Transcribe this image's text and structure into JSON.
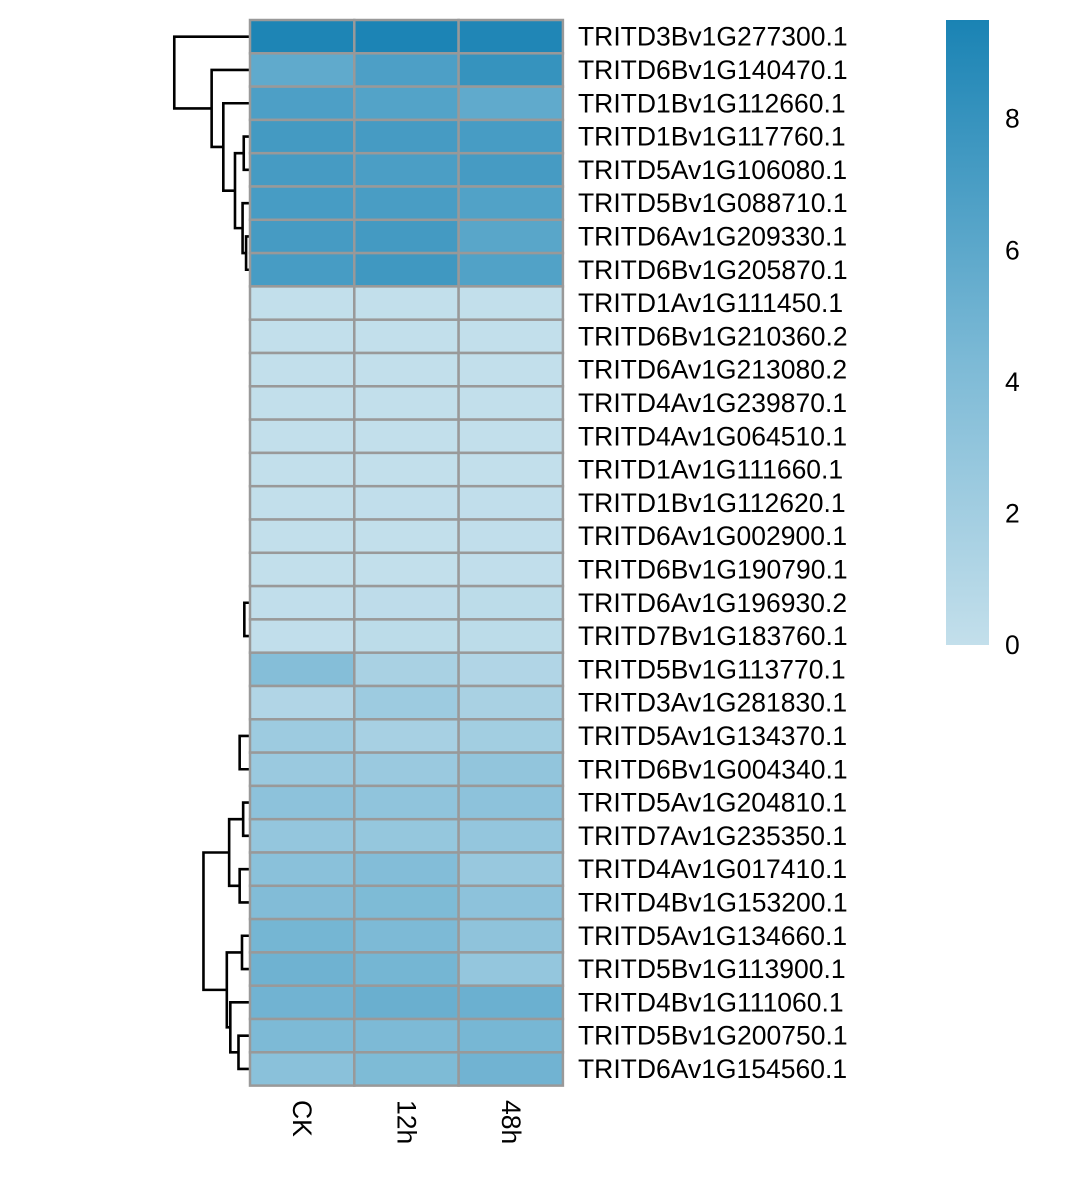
{
  "chart_data": {
    "type": "heatmap",
    "title": "",
    "xlabel": "",
    "ylabel": "",
    "columns": [
      "CK",
      "12h",
      "48h"
    ],
    "rows": [
      "TRITD3Bv1G277300.1",
      "TRITD6Bv1G140470.1",
      "TRITD1Bv1G112660.1",
      "TRITD1Bv1G117760.1",
      "TRITD5Av1G106080.1",
      "TRITD5Bv1G088710.1",
      "TRITD6Av1G209330.1",
      "TRITD6Bv1G205870.1",
      "TRITD1Av1G111450.1",
      "TRITD6Bv1G210360.2",
      "TRITD6Av1G213080.2",
      "TRITD4Av1G239870.1",
      "TRITD4Av1G064510.1",
      "TRITD1Av1G111660.1",
      "TRITD1Bv1G112620.1",
      "TRITD6Av1G002900.1",
      "TRITD6Bv1G190790.1",
      "TRITD6Av1G196930.2",
      "TRITD7Bv1G183760.1",
      "TRITD5Bv1G113770.1",
      "TRITD3Av1G281830.1",
      "TRITD5Av1G134370.1",
      "TRITD6Bv1G004340.1",
      "TRITD5Av1G204810.1",
      "TRITD7Av1G235350.1",
      "TRITD4Av1G017410.1",
      "TRITD4Bv1G153200.1",
      "TRITD5Av1G134660.1",
      "TRITD5Bv1G113900.1",
      "TRITD4Bv1G111060.1",
      "TRITD5Bv1G200750.1",
      "TRITD6Av1G154560.1"
    ],
    "values": [
      [
        9.3,
        9.4,
        9.2
      ],
      [
        5.8,
        6.8,
        8.0
      ],
      [
        6.8,
        6.5,
        5.8
      ],
      [
        7.3,
        7.2,
        7.1
      ],
      [
        7.2,
        6.9,
        7.2
      ],
      [
        7.1,
        7.0,
        6.6
      ],
      [
        7.2,
        7.3,
        6.2
      ],
      [
        7.1,
        7.5,
        6.6
      ],
      [
        0.05,
        0.05,
        0.05
      ],
      [
        0.05,
        0.05,
        0.05
      ],
      [
        0.05,
        0.05,
        0.05
      ],
      [
        0.05,
        0.05,
        0.05
      ],
      [
        0.05,
        0.05,
        0.05
      ],
      [
        0.05,
        0.05,
        0.05
      ],
      [
        0.05,
        0.1,
        0.1
      ],
      [
        0.05,
        0.05,
        0.1
      ],
      [
        0.05,
        0.05,
        0.1
      ],
      [
        0.1,
        0.3,
        0.4
      ],
      [
        0.1,
        0.4,
        0.4
      ],
      [
        3.8,
        1.6,
        1.1
      ],
      [
        1.1,
        2.3,
        1.6
      ],
      [
        2.3,
        1.7,
        2.0
      ],
      [
        2.5,
        2.5,
        3.0
      ],
      [
        3.3,
        3.1,
        3.3
      ],
      [
        2.9,
        2.8,
        2.9
      ],
      [
        3.5,
        3.9,
        2.6
      ],
      [
        4.0,
        4.2,
        3.3
      ],
      [
        4.7,
        4.3,
        3.2
      ],
      [
        5.0,
        4.7,
        2.9
      ],
      [
        4.9,
        5.3,
        5.2
      ],
      [
        4.3,
        4.3,
        4.6
      ],
      [
        3.5,
        4.2,
        4.9
      ]
    ],
    "color_scale": {
      "min": 0,
      "max": 9.5,
      "low_color": "#C3DFEB",
      "mid_color": "#7DBAD6",
      "high_color": "#1A83B4",
      "cell_border_color": "#999999"
    },
    "legend": {
      "position": "right",
      "ticks": [
        0,
        2,
        4,
        6,
        8
      ],
      "tick_labels": [
        "0",
        "2",
        "4",
        "6",
        "8"
      ]
    },
    "row_dendrogram": {
      "side": "left",
      "merges": [
        {
          "a": 6,
          "b": 7,
          "height": 0.25
        },
        {
          "a": 5,
          "b": [
            6,
            7
          ],
          "height": 0.55
        },
        {
          "a": 3,
          "b": 4,
          "height": 0.45
        },
        {
          "a": [
            3,
            4
          ],
          "b": [
            5,
            6,
            7
          ],
          "height": 1.2
        },
        {
          "a": 2,
          "b": [
            3,
            4,
            5,
            6,
            7
          ],
          "height": 2.2
        },
        {
          "a": 1,
          "b": [
            2,
            3,
            4,
            5,
            6,
            7
          ],
          "height": 3.2
        },
        {
          "a": 0,
          "b": [
            1,
            2,
            3,
            4,
            5,
            6,
            7
          ],
          "height": 6.4
        },
        {
          "a": [
            8,
            9,
            10,
            11,
            12,
            13,
            14,
            15,
            16
          ],
          "b": [
            17,
            18
          ],
          "height": 1.0
        },
        {
          "a": 17,
          "b": 18,
          "height": 0.4
        },
        {
          "a": 20,
          "b": [
            21,
            22
          ],
          "height": 1.6
        },
        {
          "a": 21,
          "b": 22,
          "height": 0.8
        },
        {
          "a": 19,
          "b": [
            20,
            21,
            22
          ],
          "height": 2.8
        },
        {
          "a": [
            8,
            18
          ],
          "b": [
            19,
            22
          ],
          "height": 3.5
        },
        {
          "a": 23,
          "b": 24,
          "height": 0.5
        },
        {
          "a": 25,
          "b": 26,
          "height": 0.8
        },
        {
          "a": [
            23,
            24
          ],
          "b": [
            25,
            26
          ],
          "height": 1.7
        },
        {
          "a": 27,
          "b": 28,
          "height": 0.6
        },
        {
          "a": 30,
          "b": 31,
          "height": 0.9
        },
        {
          "a": 29,
          "b": [
            30,
            31
          ],
          "height": 1.6
        },
        {
          "a": [
            27,
            28
          ],
          "b": [
            29,
            31
          ],
          "height": 1.9
        },
        {
          "a": [
            23,
            26
          ],
          "b": [
            27,
            31
          ],
          "height": 3.9
        },
        {
          "a": [
            8,
            22
          ],
          "b": [
            23,
            31
          ],
          "height": 8.5
        },
        {
          "a": [
            0,
            7
          ],
          "b": [
            8,
            31
          ],
          "height": 18.5
        }
      ]
    }
  }
}
